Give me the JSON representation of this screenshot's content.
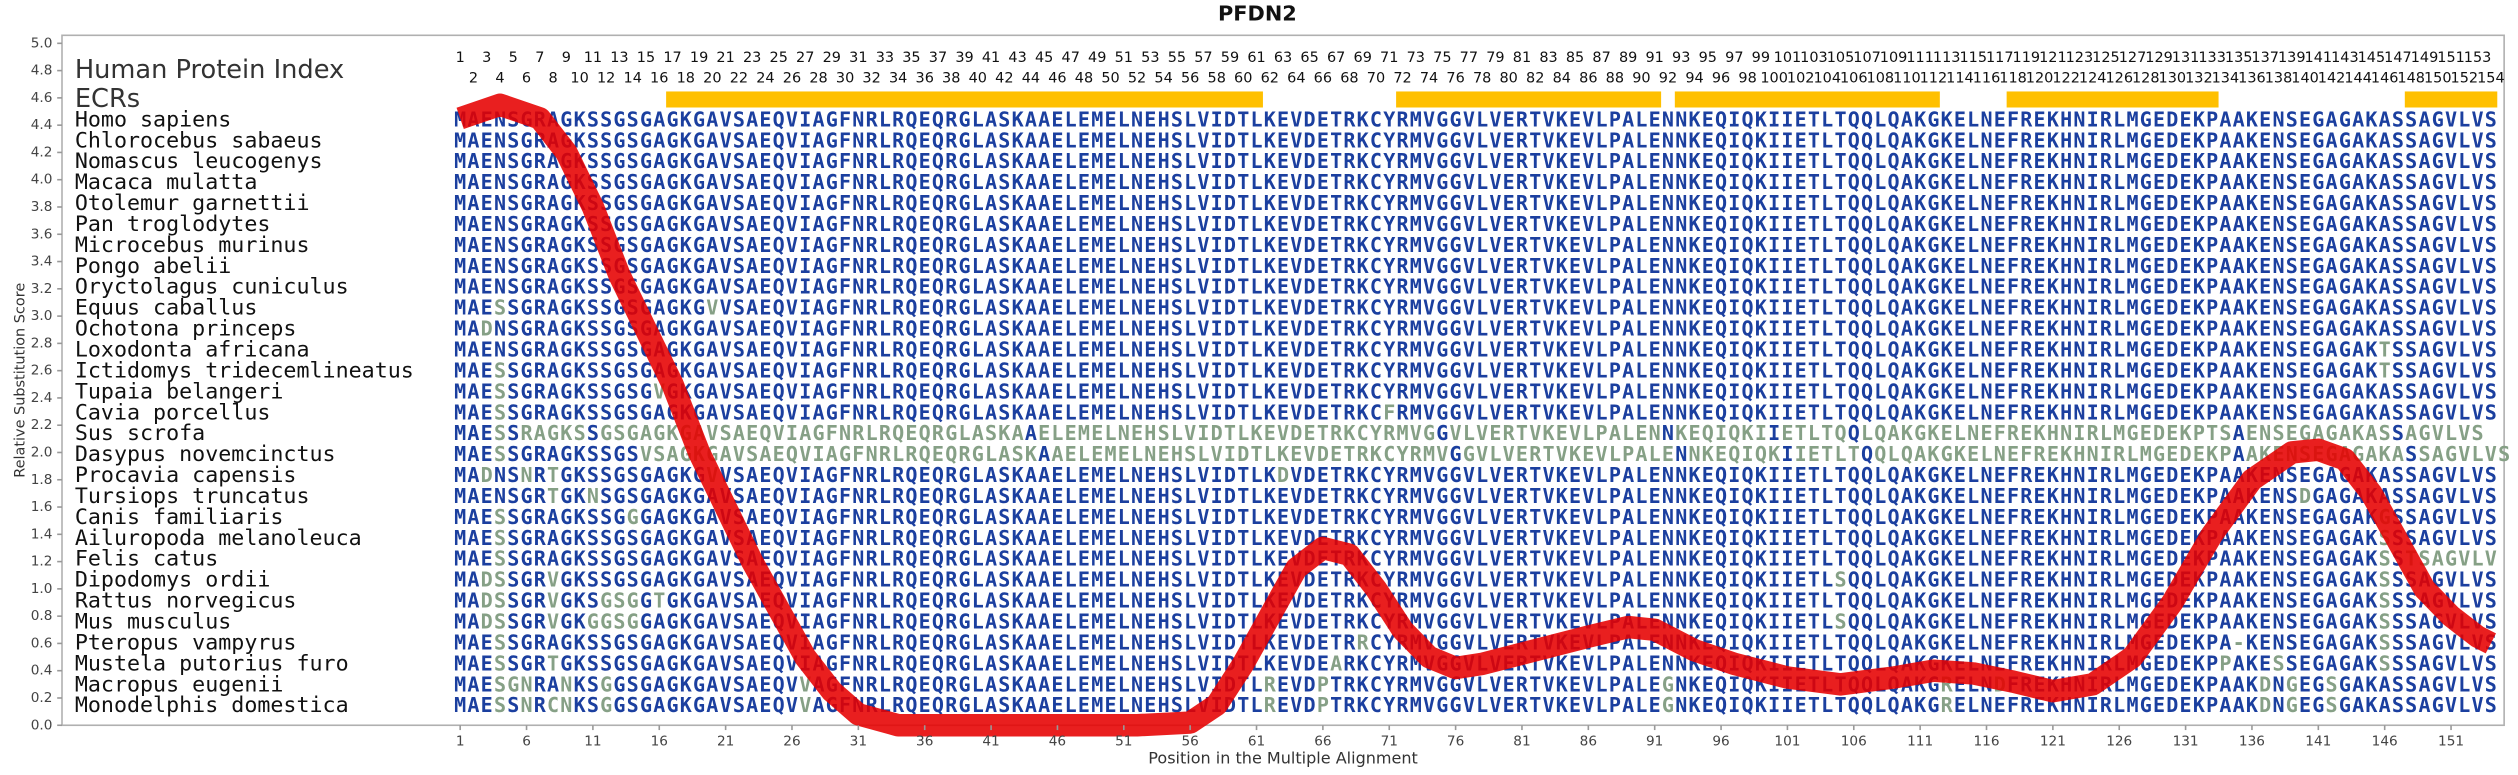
{
  "chart_data": {
    "type": "line",
    "title": "PFDN2",
    "ylabel": "Relative Substitution Score",
    "xlabel": "Position in the Multiple Alignment",
    "ylim": [
      0,
      5
    ],
    "xlim": [
      -29,
      155
    ],
    "yticks": [
      {
        "value": 0,
        "label": "0.0"
      },
      0.2,
      0.4,
      0.6,
      0.8,
      {
        "value": 1,
        "label": "1.0"
      },
      1.2,
      1.4,
      1.6,
      1.8,
      {
        "value": 2,
        "label": "2.0"
      },
      2.2,
      2.4,
      2.6,
      2.8,
      {
        "value": 3,
        "label": "3.0"
      },
      3.2,
      3.4,
      3.6,
      3.8,
      {
        "value": 4,
        "label": "4.0"
      },
      4.2,
      4.4,
      4.6,
      4.8,
      {
        "value": 5,
        "label": "5.0"
      }
    ],
    "xticks": [
      1,
      6,
      11,
      16,
      21,
      26,
      31,
      36,
      41,
      46,
      51,
      56,
      61,
      66,
      71,
      76,
      81,
      86,
      91,
      96,
      101,
      106,
      111,
      116,
      121,
      126,
      131,
      136,
      141,
      146,
      151
    ],
    "x": [
      1,
      4,
      7,
      9,
      11,
      13,
      15,
      17,
      19,
      21,
      23,
      25,
      27,
      29,
      31,
      34,
      40,
      46,
      52,
      56,
      58,
      60,
      62,
      64,
      66,
      68,
      70,
      72,
      74,
      76,
      78,
      82,
      86,
      89,
      91,
      94,
      97,
      101,
      105,
      109,
      112,
      115,
      118,
      121,
      124,
      127,
      130,
      133,
      136,
      139,
      141,
      143,
      145,
      147,
      149,
      151,
      153,
      154
    ],
    "series": [
      {
        "color": "#e60000",
        "values": [
          4.45,
          4.55,
          4.45,
          4.2,
          3.8,
          3.3,
          2.9,
          2.5,
          2.0,
          1.6,
          1.2,
          0.85,
          0.5,
          0.25,
          0.08,
          0,
          0,
          0,
          0,
          0.02,
          0.15,
          0.45,
          0.8,
          1.15,
          1.3,
          1.25,
          1.0,
          0.7,
          0.5,
          0.42,
          0.45,
          0.55,
          0.65,
          0.72,
          0.7,
          0.55,
          0.45,
          0.35,
          0.3,
          0.35,
          0.4,
          0.38,
          0.32,
          0.25,
          0.3,
          0.5,
          0.9,
          1.4,
          1.8,
          2.0,
          2.02,
          1.95,
          1.7,
          1.35,
          1.0,
          0.8,
          0.65,
          0.6
        ]
      }
    ],
    "protein_index_title": "Human Protein Index",
    "protein_index": [
      1,
      2,
      3,
      4,
      5,
      6,
      7,
      8,
      9,
      10,
      11,
      12,
      13,
      14,
      15,
      16,
      17,
      18,
      19,
      20,
      21,
      22,
      23,
      24,
      25,
      26,
      27,
      28,
      29,
      30,
      31,
      32,
      33,
      34,
      35,
      36,
      37,
      38,
      39,
      40,
      41,
      42,
      43,
      44,
      45,
      46,
      47,
      48,
      49,
      50,
      51,
      52,
      53,
      54,
      55,
      56,
      57,
      58,
      59,
      60,
      61,
      62,
      63,
      64,
      65,
      66,
      67,
      68,
      69,
      70,
      71,
      72,
      73,
      74,
      75,
      76,
      77,
      78,
      79,
      80,
      81,
      82,
      83,
      84,
      85,
      86,
      87,
      88,
      89,
      90,
      91,
      92,
      93,
      94,
      95,
      96,
      97,
      98,
      99,
      100,
      101,
      102,
      103,
      104,
      105,
      106,
      107,
      108,
      109,
      110,
      111,
      112,
      113,
      114,
      115,
      116,
      117,
      118,
      119,
      120,
      121,
      122,
      123,
      124,
      125,
      126,
      127,
      128,
      129,
      130,
      131,
      132,
      133,
      134,
      135,
      136,
      137,
      138,
      139,
      140,
      141,
      142,
      143,
      144,
      145,
      146,
      147,
      148,
      149,
      150,
      151,
      152,
      153,
      154
    ],
    "ecr_label": "ECRs",
    "ecr_color": "#ffc000",
    "ecrs": [
      [
        17,
        61
      ],
      [
        72,
        91
      ],
      [
        93,
        112
      ],
      [
        118,
        133
      ],
      [
        148,
        154
      ]
    ],
    "alignment": [
      {
        "species": "Homo sapiens",
        "sequence": "MAENSGRAGKSSGSGAGKGAVSAEQVIAGFNRLRQEQRGLASKAAELEMELNEHSLVIDTLKEVDETRKCYRMVGGVLVERTVKEVLPALENNKEQIQKIIETLTQQLQAKGKELNEFREKHNIRLMGEDEKPAAKENSEGAGAKASSAGVLVS"
      },
      {
        "species": "Chlorocebus sabaeus",
        "sequence": "MAENSGRAGKSSGSGAGKGAVSAEQVIAGFNRLRQEQRGLASKAAELEMELNEHSLVIDTLKEVDETRKCYRMVGGVLVERTVKEVLPALENNKEQIQKIIETLTQQLQAKGKELNEFREKHNIRLMGEDEKPAAKENSEGAGAKASSAGVLVS"
      },
      {
        "species": "Nomascus leucogenys",
        "sequence": "MAENSGRAGKSSGSGAGKGAVSAEQVIAGFNRLRQEQRGLASKAAELEMELNEHSLVIDTLKEVDETRKCYRMVGGVLVERTVKEVLPALENNKEQIQKIIETLTQQLQAKGKELNEFREKHNIRLMGEDEKPAAKENSEGAGAKASSAGVLVS"
      },
      {
        "species": "Macaca mulatta",
        "sequence": "MAENSGRAGKSSGSGAGKGAVSAEQVIAGFNRLRQEQRGLASKAAELEMELNEHSLVIDTLKEVDETRKCYRMVGGVLVERTVKEVLPALENNKEQIQKIIETLTQQLQAKGKELNEFREKHNIRLMGEDEKPAAKENSEGAGAKASSAGVLVS"
      },
      {
        "species": "Otolemur garnettii",
        "sequence": "MAENSGRAGKSSGSGAGKGAVSAEQVIAGFNRLRQEQRGLASKAAELEMELNEHSLVIDTLKEVDETRKCYRMVGGVLVERTVKEVLPALENNKEQIQKIIETLTQQLQAKGKELNEFREKHNIRLMGEDEKPAAKENSEGAGAKASSAGVLVS"
      },
      {
        "species": "Pan troglodytes",
        "sequence": "MAENSGRAGKSSGSGAGKGAVSAEQVIAGFNRLRQEQRGLASKAAELEMELNEHSLVIDTLKEVDETRKCYRMVGGVLVERTVKEVLPALENNKEQIQKIIETLTQQLQAKGKELNEFREKHNIRLMGEDEKPAAKENSEGAGAKASSAGVLVS"
      },
      {
        "species": "Microcebus murinus",
        "sequence": "MAENSGRAGKSSGSGAGKGAVSAEQVIAGFNRLRQEQRGLASKAAELEMELNEHSLVIDTLKEVDETRKCYRMVGGVLVERTVKEVLPALENNKEQIQKIIETLTQQLQAKGKELNEFREKHNIRLMGEDEKPAAKENSEGAGAKASSAGVLVS"
      },
      {
        "species": "Pongo abelii",
        "sequence": "MAENSGRAGKSSGSGAGKGAVSAEQVIAGFNRLRQEQRGLASKAAELEMELNEHSLVIDTLKEVDETRKCYRMVGGVLVERTVKEVLPALENNKEQIQKIIETLTQQLQAKGKELNEFREKHNIRLMGEDEKPAAKENSEGAGAKASSAGVLVS"
      },
      {
        "species": "Oryctolagus cuniculus",
        "sequence": "MAENSGRAGKSSGSGAGKGAVSAEQVIAGFNRLRQEQRGLASKAAELEMELNEHSLVIDTLKEVDETRKCYRMVGGVLVERTVKEVLPALENNKEQIQKIIETLTQQLQAKGKELNEFREKHNIRLMGEDEKPAAKENSEGAGAKASSAGVLVS"
      },
      {
        "species": "Equus caballus",
        "sequence": "MAESSGRAGKSSGSGAGKGVVSAEQVIAGFNRLRQEQRGLASKAAELEMELNEHSLVIDTLKEVDETRKCYRMVGGVLVERTVKEVLPALENNKEQIQKIIETLTQQLQAKGKELNEFREKHNIRLMGEDEKPAAKENSEGAGAKASSAGVLVS"
      },
      {
        "species": "Ochotona princeps",
        "sequence": "MADNSGRAGKSSGSGAGKGAVSAEQVIAGFNRLRQEQRGLASKAAELEMELNEHSLVIDTLKEVDETRKCYRMVGGVLVERTVKEVLPALENNKEQIQKIIETLTQQLQAKGKELNEFREKHNIRLMGEDEKPAAKENSEGAGAKASSAGVLVS"
      },
      {
        "species": "Loxodonta africana",
        "sequence": "MAENSGRAGKSSGSGAGKGAVSAEQVIAGFNRLRQEQRGLASKAAELEMELNEHSLVIDTLKEVDETRKCYRMVGGVLVERTVKEVLPALENNKEQIQKIIETLTQQLQAKGKELNEFREKHNIRLMGEDEKPAAKENSEGAGAKTSSAGVLVS"
      },
      {
        "species": "Ictidomys tridecemlineatus",
        "sequence": "MAESSGRAGKSSGSGAGKGAVSAEQVIAGFNRLRQEQRGLASKAAELEMELNEHSLVIDTLKEVDETRKCYRMVGGVLVERTVKEVLPALENNKEQIQKIIETLTQQLQAKGKELNEFREKHNIRLMGEDEKPAAKENSEGAGAKTSSAGVLVS"
      },
      {
        "species": "Tupaia belangeri",
        "sequence": "MAESSGRAGKSSGSGVGKGAVSAEQVIAGFNRLRQEQRGLASKAAELEMELNEHSLVIDTLKEVDETRKCYRMVGGVLVERTVKEVLPALENNKEQIQKIIETLTQQLQAKGKELNEFREKHNIRLMGEDEKPAAKENSEGAGAKASSAGVLVS"
      },
      {
        "species": "Cavia porcellus",
        "sequence": "MAESSGRAGKSSGSGAGKGAVSAEQVIAGFNRLRQEQRGLASKAAELEMELNEHSLVIDTLKEVDETRKCFRMVGGVLVERTVKEVLPALENNKEQIQKIIETLTQQLQAKGKELNEFREKHNIRLMGEDEKPAAKENSEGAGAKASSAGVLVS"
      },
      {
        "species": "Sus scrofa",
        "sequence": "MAESSRAGKSSGSGAGKGAVSAEQVIAGFNRLRQEQRGLASKAAELEMELNEHSLVIDTLKEVDETRKCYRMVGGVLVERTVKEVLPALENNKEQIQKIIETLTQQLQAKGKELNEFREKHNIRLMGEDEKPTSAENSEGAGAKASSAGVLVS"
      },
      {
        "species": "Dasypus novemcinctus",
        "sequence": "MAESSGRAGKSSGSVSAGKGAVSAEQVIAGFNRLRQEQRGLASKAAELEMELNEHSLVIDTLKEVDETRKCYRMVGGVLVERTVKEVLPALENNKEQIQKIIETLTQQLQAKGKELNEFREKHNIRLMGEDEKPAAKENSEGAGAKASSAGVLVS"
      },
      {
        "species": "Procavia capensis",
        "sequence": "MADNSNRTGKSSGSGAGKGVVSAEQVIAGFNRLRQEQRGLASKAAELEMELNEHSLVIDTLKDVDETRKCYRMVGGVLVERTVKEVLPALENNKEQIQKIIETLTQQLQAKGKELNEFREKHNIRLMGEDEKPAAKENSEGAGAKASSAGVLVS"
      },
      {
        "species": "Tursiops truncatus",
        "sequence": "MAENSGRTGKNSGSGAGKGAVSAEQVIAGFNRLRQEQRGLASKAAELEMELNEHSLVIDTLKEVDETRKCYRMVGGVLVERTVKEVLPALENNKEQIQKIIETLTQQLQAKGKELNEFREKHNIRLMGEDEKPAAKENSDGAGAKASSAGVLVS"
      },
      {
        "species": "Canis familiaris",
        "sequence": "MAESSGRAGKSSGGGAGKGAVSAEQVIAGFNRLRQEQRGLASKAAELEMELNEHSLVIDTLKEVDETRKCYRMVGGVLVERTVKEVLPALENNKEQIQKIIETLTQQLQAKGKELNEFREKHNIRLMGEDEKPAAKENSEGAGAKGSSAGVLVS"
      },
      {
        "species": "Ailuropoda melanoleuca",
        "sequence": "MAESSGRAGKSSGSGAGKGAVSAEQVIAGFNRLRQEQRGLASKAAELEMELNEHSLVIDTLKEVDETRKCYRMVGGVLVERTVKEVLPALENNKEQIQKIIETLTQQLQAKGKELNEFREKHNIRLMGEDEKPAAKENSEGAGAKSSSAGVLVS"
      },
      {
        "species": "Felis catus",
        "sequence": "MAESSGRAGKSSGSGAGKGAVSAEQVIAGFNRLRQEQRGLASKAAELEMELNEHSLVIDTLKEVDETRKCYRMVGGVLVERTVKEVLPALENNKEQIQKIIETLTQQLQAKGKELNEFREKHNIRLMGEDEKPAAKENSEGAGAKSSTSAGVLV"
      },
      {
        "species": "Dipodomys ordii",
        "sequence": "MADSSGRVGKSSGSGAGKGAVSAEQVIAGFNRLRQEQRGLASKAAELEMELNEHSLVIDTLKEVDETRKCYRMVGGVLVERTVKEVLPALENNKEQIQKIIETLSQQLQAKGKELNEFREKHNIRLMGEDEKPAAKENSEGAGAKSSSAGVLVS"
      },
      {
        "species": "Rattus norvegicus",
        "sequence": "MADSSGRVGKSGSGGTGKGAVSAEQVIAGFNRLRQEQRGLASKAAELEMELNEHSLVIDTLKEVDETRKCYRMVGGVLVERTVKEVLPALENNKEQIQKIIETLTQQLQAKGKELNEFREKHNIRLMGEDEKPAAKENSEGAGAKSSSAGVLVS"
      },
      {
        "species": "Mus musculus",
        "sequence": "MADSSGRVGKGGSGGAGKGAVSAEQVIAGFNRLRQEQRGLASKAAELEMELNEHSLVIDTLKEVDETRKCYRMVGGVLVERTVKEVLPALENNKEQIQKIIETLSQQLQAKGKELNEFREKHNIRLMGEDEKPAAKENSEGAGAKSSSAGVLVS"
      },
      {
        "species": "Pteropus vampyrus",
        "sequence": "MAESSGRAGKSSGSGAGKGAVSAEQVIAGFNRLRQEQRGLASKAAELEMELNEHSLVIDTLKEVDETRRCYRMVGGVLVERTVKEVLPALENNKEQIQKIIETLTQQLQAKGKELNEFREKHNIRLMGEDEKPA-KENSEGAGAKSSSAGVLVS"
      },
      {
        "species": "Mustela putorius furo",
        "sequence": "MAESSGRTGKSSGSGAGKGAVSAEQVIAGFNRLRQEQRGLASKAAELEMELNEHSLVIDTLKEVDEARKCYRMVGGVLVERTVKEVLPALENNKEQIQKIIETLTQQLQAKGKELNEFREKHNIRLMGEDEKPPAKESSEGAGAKSSSAGVLVS"
      },
      {
        "species": "Macropus eugenii",
        "sequence": "MAESGNRANKSGGSGAGKGAVSAEQVVAGFNRLRQEQRGLASKAAELEMELNEHSLVIDTLREVDPTRKCYRMVGGVLVERTVKEVLPALEGNKEQIQKIIETLTQQLQAKGRELNDFREKHNIRLMGEDEKPAAKDNGEGSGAKASSAGVLVS"
      },
      {
        "species": "Monodelphis domestica",
        "sequence": "MAESSNRCNKSGGSGAGKGAVSAEQVVAGFNRLRQEQRGLASKAAELEMELNEHSLVIDTLREVDPTRKCYRMVGGVLVERTVKEVLPALEGNKEQIQKIIETLTQQLQAKGRELNEFREKHNIRLMGEDEKPAAKDNGEGSGAKASSAGVLVS"
      }
    ]
  }
}
